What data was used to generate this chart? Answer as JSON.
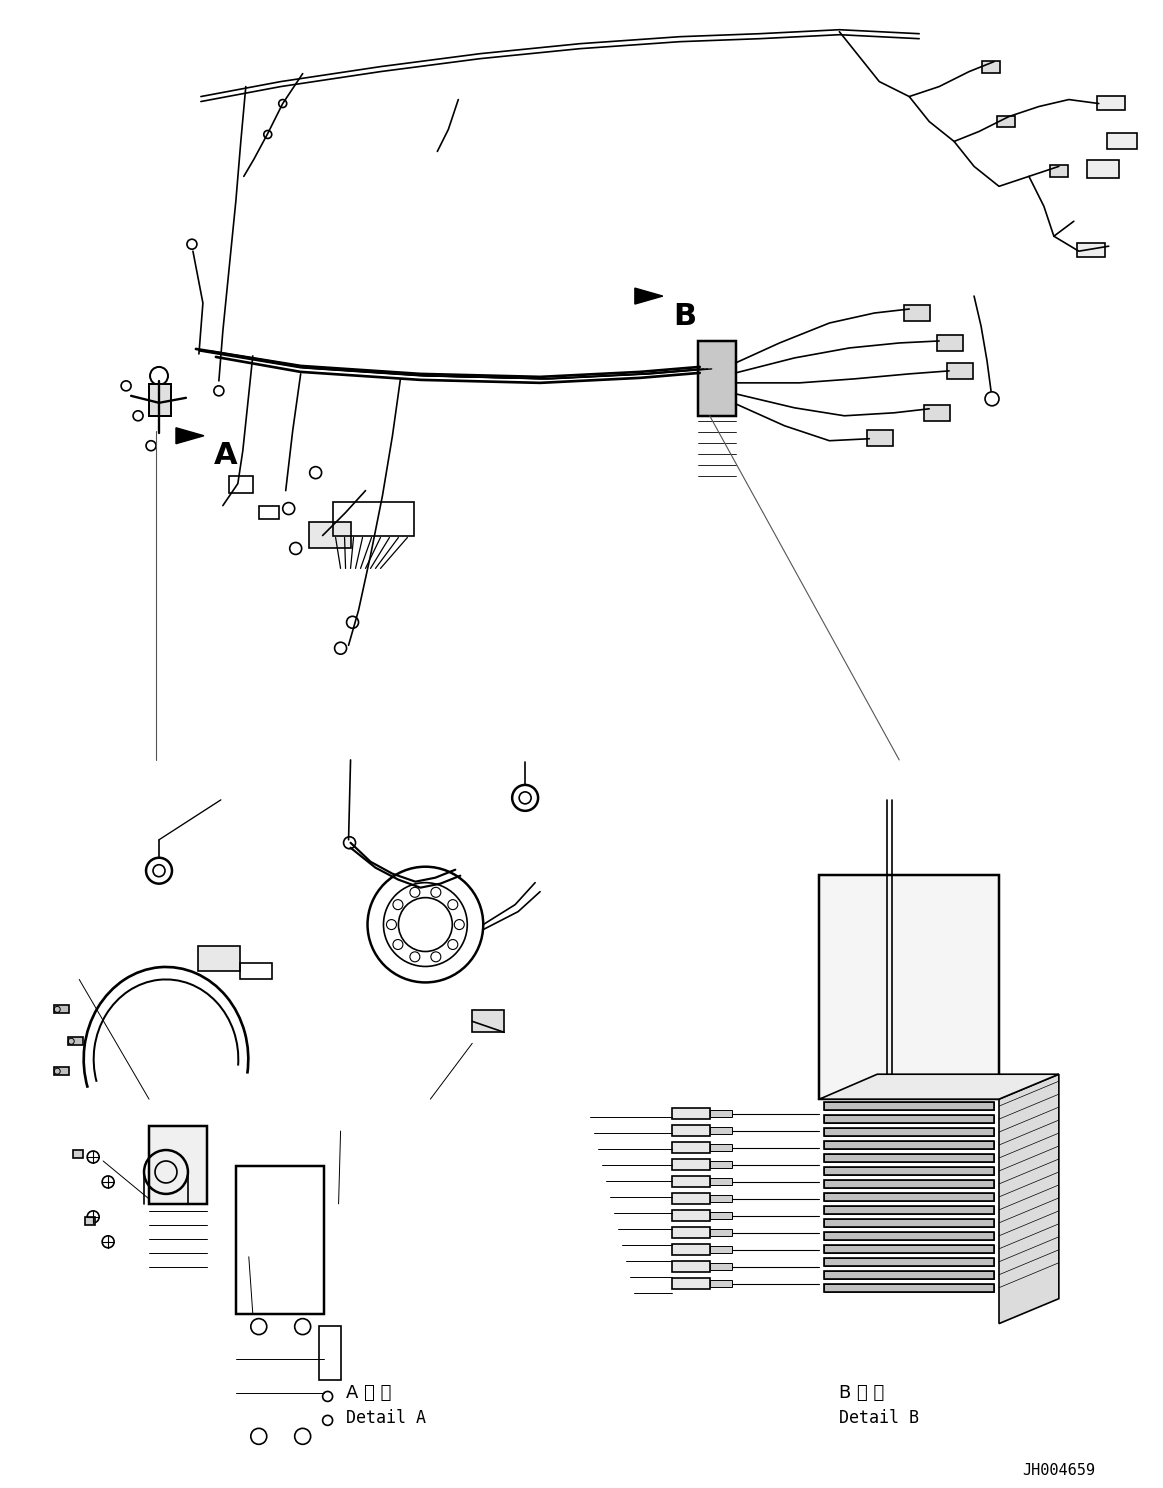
{
  "figsize": [
    11.63,
    14.88
  ],
  "dpi": 100,
  "background_color": "#ffffff",
  "part_number": "JH004659",
  "label_a": "A",
  "label_b": "B",
  "detail_a_japanese": "A 詳 細",
  "detail_a_english": "Detail A",
  "detail_b_japanese": "B 詳 細",
  "detail_b_english": "Detail B",
  "line_color": "#000000",
  "line_width": 1.2
}
